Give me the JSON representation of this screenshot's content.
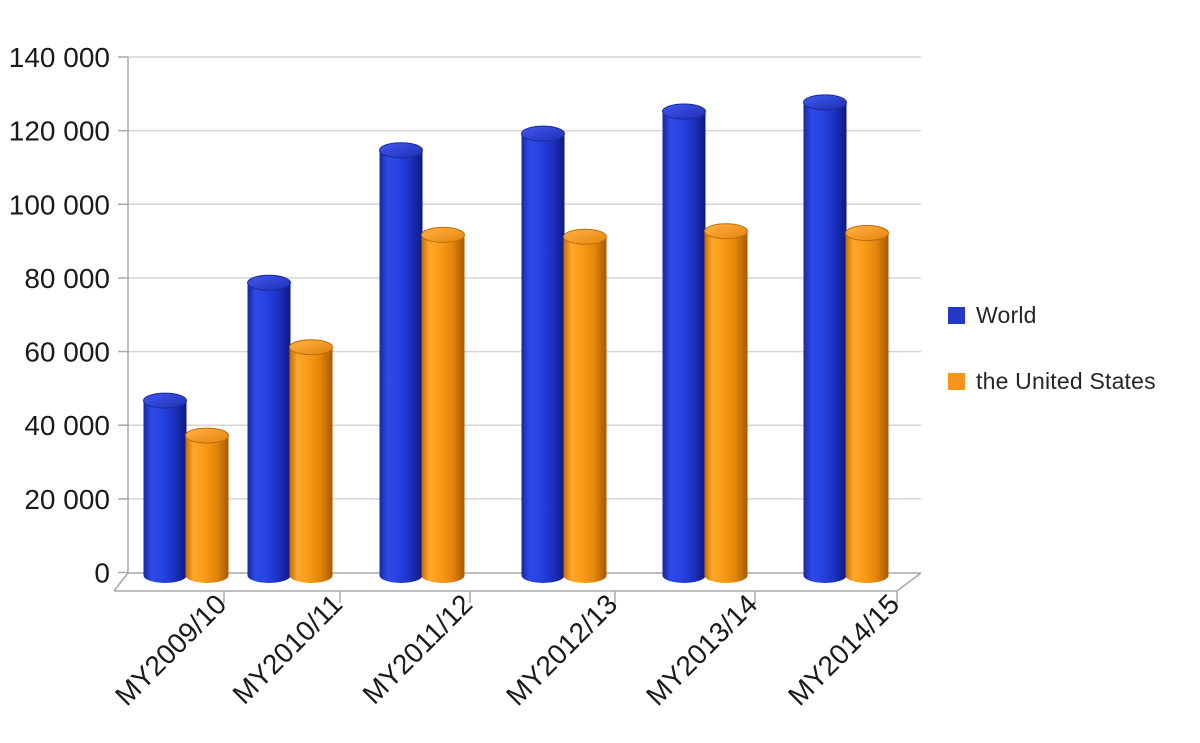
{
  "chart_data": {
    "type": "bar",
    "subtype": "3d-cylinder",
    "title": "",
    "xlabel": "",
    "ylabel": "",
    "categories": [
      "MY2009/10",
      "MY2010/11",
      "MY2011/12",
      "MY2012/13",
      "MY2013/14",
      "MY2014/15"
    ],
    "series": [
      {
        "name": "World",
        "color": "#2338C8",
        "values": [
          47500,
          79500,
          115500,
          120000,
          126000,
          128500
        ]
      },
      {
        "name": "the United States",
        "color": "#F7941E",
        "values": [
          38000,
          62000,
          92500,
          92000,
          93500,
          93000
        ]
      }
    ],
    "ylim": [
      0,
      140000
    ],
    "ytick_step": 20000,
    "ytick_labels": [
      "0",
      "20 000",
      "40 000",
      "60 000",
      "80 000",
      "100 000",
      "120 000",
      "140 000"
    ],
    "grid": true,
    "legend_position": "right",
    "colors": {
      "gridline": "#d4d4d4",
      "axis": "#a8a8a8",
      "text": "#1a1a1a",
      "blue_highlight": "#2e4ae6",
      "blue_shadow": "#0f1a80",
      "orange_highlight": "#ffa62a",
      "orange_shadow": "#a85803"
    }
  }
}
